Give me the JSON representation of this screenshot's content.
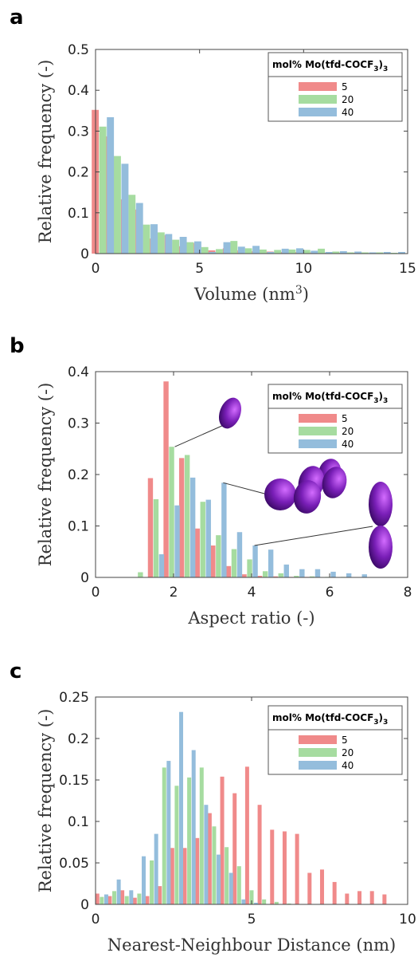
{
  "colors": {
    "s5": "#f08a8a",
    "s20": "#a6dca0",
    "s40": "#94bddc",
    "particle": "#7a1fb8"
  },
  "legend": {
    "title": "mol% Mo(tfd-COCF",
    "title_sub": "3",
    "title_end": ")",
    "title_sub2": "3"
  },
  "chart_data": [
    {
      "panel": "a",
      "type": "bar",
      "xlabel": "Volume (nm",
      "xlabel_sup": "3",
      "xlabel_end": ")",
      "ylabel": "Relative frequency  (-)",
      "xlim": [
        0,
        15
      ],
      "ylim": [
        0,
        0.5
      ],
      "xticks": [
        "0",
        "5",
        "10",
        "15"
      ],
      "yticks": [
        "0",
        "0.1",
        "0.2",
        "0.3",
        "0.4",
        "0.5"
      ],
      "x": [
        0.35,
        1.05,
        1.75,
        2.45,
        3.15,
        3.85,
        4.55,
        5.25,
        5.95,
        6.65,
        7.35,
        8.05,
        8.75,
        9.45,
        10.15,
        10.85,
        11.55,
        12.25,
        12.95,
        13.65,
        14.35
      ],
      "series": [
        {
          "name": "5",
          "values": [
            0.352,
            0.287,
            0.133,
            0.108,
            0.037,
            0.045,
            0.018,
            0.026,
            0.008,
            0.013,
            0.008,
            0.006,
            0.005,
            0.004,
            0.004,
            0.003,
            0.002,
            0.002,
            0.002,
            0.001,
            0.001
          ]
        },
        {
          "name": "20",
          "values": [
            0.311,
            0.239,
            0.144,
            0.071,
            0.052,
            0.034,
            0.028,
            0.016,
            0.011,
            0.031,
            0.013,
            0.01,
            0.009,
            0.01,
            0.009,
            0.012,
            0.005,
            0.003,
            0.003,
            0.003,
            0.002
          ]
        },
        {
          "name": "40",
          "values": [
            0.334,
            0.22,
            0.124,
            0.072,
            0.048,
            0.041,
            0.03,
            0.004,
            0.028,
            0.017,
            0.019,
            0.004,
            0.012,
            0.013,
            0.007,
            0.004,
            0.006,
            0.005,
            0.003,
            0.004,
            0.004
          ]
        }
      ]
    },
    {
      "panel": "b",
      "type": "bar",
      "xlabel": "Aspect ratio (-)",
      "ylabel": "Relative frequency  (-)",
      "xlim": [
        0,
        8
      ],
      "ylim": [
        0,
        0.4
      ],
      "xticks": [
        "0",
        "2",
        "4",
        "6",
        "8"
      ],
      "yticks": [
        "0",
        "0.1",
        "0.2",
        "0.3",
        "0.4"
      ],
      "x": [
        1.15,
        1.55,
        1.95,
        2.35,
        2.75,
        3.15,
        3.55,
        3.95,
        4.35,
        4.75,
        5.15,
        5.55,
        5.95,
        6.35,
        6.75
      ],
      "series": [
        {
          "name": "5",
          "values": [
            0,
            0.193,
            0.381,
            0.232,
            0.095,
            0.062,
            0.022,
            0.006,
            0.003,
            0.002,
            0.001,
            0.001,
            0,
            0,
            0
          ]
        },
        {
          "name": "20",
          "values": [
            0.01,
            0.152,
            0.254,
            0.238,
            0.147,
            0.082,
            0.055,
            0.035,
            0.012,
            0.008,
            0.003,
            0.002,
            0.001,
            0.001,
            0
          ]
        },
        {
          "name": "40",
          "values": [
            0,
            0.045,
            0.14,
            0.194,
            0.151,
            0.184,
            0.088,
            0.062,
            0.054,
            0.025,
            0.016,
            0.016,
            0.011,
            0.008,
            0.006
          ]
        }
      ]
    },
    {
      "panel": "c",
      "type": "bar",
      "xlabel": "Nearest-Neighbour Distance (nm)",
      "ylabel": "Relative frequency  (-)",
      "xlim": [
        0,
        10
      ],
      "ylim": [
        0,
        0.25
      ],
      "xticks": [
        "0",
        "5",
        "10"
      ],
      "yticks": [
        "0",
        "0.05",
        "0.1",
        "0.15",
        "0.2",
        "0.25"
      ],
      "x": [
        0.2,
        0.6,
        1.0,
        1.4,
        1.8,
        2.2,
        2.6,
        3.0,
        3.4,
        3.8,
        4.2,
        4.6,
        5.0,
        5.4,
        5.8,
        6.2,
        6.6,
        7.0,
        7.4,
        7.8,
        8.2,
        8.6,
        9.0,
        9.4
      ],
      "series": [
        {
          "name": "5",
          "values": [
            0.013,
            0.01,
            0.017,
            0.008,
            0.01,
            0.022,
            0.068,
            0.068,
            0.08,
            0.11,
            0.154,
            0.134,
            0.166,
            0.12,
            0.09,
            0.088,
            0.085,
            0.038,
            0.042,
            0.027,
            0.013,
            0.016,
            0.016,
            0.012
          ]
        },
        {
          "name": "20",
          "values": [
            0.009,
            0.016,
            0.01,
            0.013,
            0.053,
            0.165,
            0.143,
            0.153,
            0.165,
            0.094,
            0.069,
            0.046,
            0.017,
            0.006,
            0.003,
            0.001,
            0,
            0,
            0,
            0,
            0,
            0,
            0,
            0
          ]
        },
        {
          "name": "40",
          "values": [
            0.012,
            0.03,
            0.017,
            0.058,
            0.085,
            0.173,
            0.232,
            0.186,
            0.12,
            0.06,
            0.038,
            0.006,
            0.002,
            0,
            0,
            0,
            0,
            0,
            0,
            0,
            0,
            0,
            0,
            0
          ]
        }
      ]
    }
  ]
}
